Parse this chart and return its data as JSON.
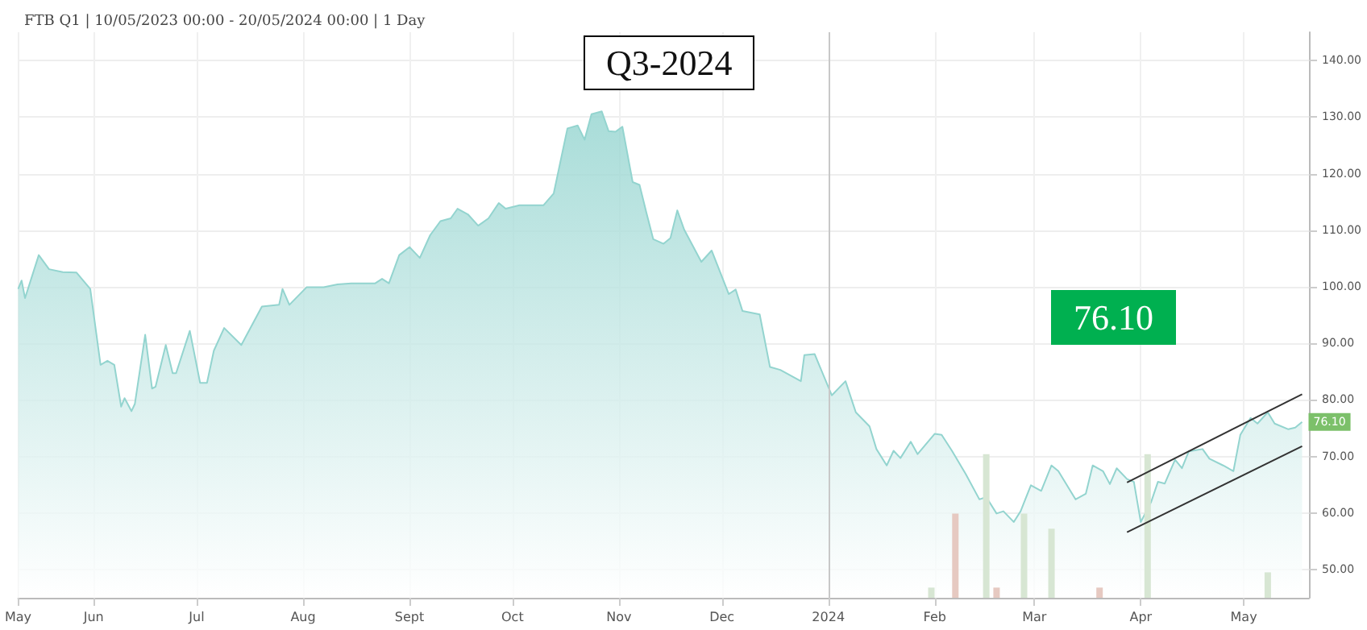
{
  "chart_data": {
    "type": "area",
    "title": "Q3-2024",
    "subtitle": "FTB Q1 | 10/05/2023 00:00 - 20/05/2024 00:00 | 1 Day",
    "annotations": [
      "76.10",
      {
        "text": "76.10",
        "x": "2024-05-18",
        "y": 76.1
      }
    ],
    "xlim": [
      "2023-05-10",
      "2024-05-20"
    ],
    "xticks": [
      {
        "value": "2023-05-10",
        "label": "May"
      },
      {
        "value": "2023-06-01",
        "label": "Jun"
      },
      {
        "value": "2023-07-01",
        "label": "Jul"
      },
      {
        "value": "2023-08-01",
        "label": "Aug"
      },
      {
        "value": "2023-09-01",
        "label": "Sept"
      },
      {
        "value": "2023-10-01",
        "label": "Oct"
      },
      {
        "value": "2023-11-01",
        "label": "Nov"
      },
      {
        "value": "2023-12-01",
        "label": "Dec"
      },
      {
        "value": "2024-01-01",
        "label": "2024"
      },
      {
        "value": "2024-02-01",
        "label": "Feb"
      },
      {
        "value": "2024-03-01",
        "label": "Mar"
      },
      {
        "value": "2024-04-01",
        "label": "Apr"
      },
      {
        "value": "2024-05-01",
        "label": "May"
      }
    ],
    "ylim": [
      45,
      145
    ],
    "yticks": [
      {
        "value": 50,
        "label": "50.00"
      },
      {
        "value": 60,
        "label": "60.00"
      },
      {
        "value": 70,
        "label": "70.00"
      },
      {
        "value": 80,
        "label": "80.00"
      },
      {
        "value": 90,
        "label": "90.00"
      },
      {
        "value": 100,
        "label": "100.00"
      },
      {
        "value": 110,
        "label": "110.00"
      },
      {
        "value": 120,
        "label": "120.00"
      },
      {
        "value": 130,
        "label": "130.00"
      },
      {
        "value": 140,
        "label": "140.00"
      }
    ],
    "grid": true,
    "ref_lines": [
      {
        "axis": "x",
        "value": "2024-01-01",
        "color": "#c8c8c8"
      }
    ],
    "series": [
      {
        "color": "#93d4cf",
        "x": [
          "2023-05-10",
          "2023-05-11",
          "2023-05-12",
          "2023-05-16",
          "2023-05-19",
          "2023-05-23",
          "2023-05-27",
          "2023-05-31",
          "2023-06-03",
          "2023-06-05",
          "2023-06-07",
          "2023-06-09",
          "2023-06-10",
          "2023-06-12",
          "2023-06-13",
          "2023-06-16",
          "2023-06-18",
          "2023-06-19",
          "2023-06-22",
          "2023-06-24",
          "2023-06-25",
          "2023-06-29",
          "2023-07-02",
          "2023-07-04",
          "2023-07-06",
          "2023-07-09",
          "2023-07-14",
          "2023-07-20",
          "2023-07-25",
          "2023-07-26",
          "2023-07-28",
          "2023-08-02",
          "2023-08-07",
          "2023-08-11",
          "2023-08-15",
          "2023-08-22",
          "2023-08-24",
          "2023-08-26",
          "2023-08-29",
          "2023-09-01",
          "2023-09-04",
          "2023-09-07",
          "2023-09-10",
          "2023-09-13",
          "2023-09-15",
          "2023-09-18",
          "2023-09-21",
          "2023-09-24",
          "2023-09-27",
          "2023-09-29",
          "2023-10-03",
          "2023-10-07",
          "2023-10-10",
          "2023-10-13",
          "2023-10-17",
          "2023-10-20",
          "2023-10-22",
          "2023-10-24",
          "2023-10-27",
          "2023-10-29",
          "2023-10-31",
          "2023-11-02",
          "2023-11-05",
          "2023-11-07",
          "2023-11-09",
          "2023-11-11",
          "2023-11-14",
          "2023-11-16",
          "2023-11-18",
          "2023-11-20",
          "2023-11-25",
          "2023-11-28",
          "2023-12-03",
          "2023-12-05",
          "2023-12-07",
          "2023-12-12",
          "2023-12-15",
          "2023-12-18",
          "2023-12-24",
          "2023-12-25",
          "2023-12-28",
          "2024-01-02",
          "2024-01-06",
          "2024-01-09",
          "2024-01-13",
          "2024-01-15",
          "2024-01-18",
          "2024-01-20",
          "2024-01-22",
          "2024-01-25",
          "2024-01-27",
          "2024-02-01",
          "2024-02-03",
          "2024-02-06",
          "2024-02-10",
          "2024-02-14",
          "2024-02-16",
          "2024-02-19",
          "2024-02-21",
          "2024-02-24",
          "2024-02-26",
          "2024-02-29",
          "2024-03-03",
          "2024-03-06",
          "2024-03-08",
          "2024-03-13",
          "2024-03-16",
          "2024-03-18",
          "2024-03-21",
          "2024-03-23",
          "2024-03-25",
          "2024-03-28",
          "2024-03-30",
          "2024-04-01",
          "2024-04-04",
          "2024-04-06",
          "2024-04-08",
          "2024-04-11",
          "2024-04-13",
          "2024-04-15",
          "2024-04-19",
          "2024-04-21",
          "2024-04-25",
          "2024-04-28",
          "2024-04-30",
          "2024-05-03",
          "2024-05-05",
          "2024-05-08",
          "2024-05-10",
          "2024-05-14",
          "2024-05-16",
          "2024-05-18"
        ],
        "values": [
          99.6,
          101.1,
          98.0,
          105.6,
          103.1,
          102.6,
          102.5,
          99.6,
          86.2,
          86.9,
          86.2,
          78.8,
          80.3,
          78.0,
          79.3,
          91.5,
          82.0,
          82.3,
          89.7,
          84.7,
          84.7,
          92.2,
          83.0,
          83.0,
          88.7,
          92.7,
          89.7,
          96.5,
          96.8,
          99.6,
          96.8,
          99.9,
          99.9,
          100.4,
          100.6,
          100.6,
          101.4,
          100.6,
          105.6,
          107.0,
          105.1,
          109.1,
          111.6,
          112.1,
          113.8,
          112.8,
          110.8,
          112.1,
          114.8,
          113.8,
          114.4,
          114.4,
          114.4,
          116.5,
          128.0,
          128.5,
          126.0,
          130.5,
          131.0,
          127.5,
          127.4,
          128.3,
          118.5,
          118.0,
          113.1,
          108.4,
          107.6,
          108.6,
          113.5,
          110.1,
          104.4,
          106.4,
          98.7,
          99.5,
          95.7,
          95.1,
          85.8,
          85.3,
          83.3,
          87.9,
          88.1,
          80.8,
          83.3,
          77.8,
          75.3,
          71.3,
          68.4,
          71.0,
          69.7,
          72.6,
          70.4,
          74.0,
          73.8,
          71.0,
          66.9,
          62.4,
          62.8,
          59.9,
          60.3,
          58.4,
          60.3,
          64.9,
          63.9,
          68.4,
          67.4,
          62.4,
          63.4,
          68.4,
          67.4,
          65.1,
          67.9,
          66.0,
          65.5,
          58.4,
          61.9,
          65.5,
          65.2,
          69.4,
          67.9,
          70.9,
          71.3,
          69.6,
          68.4,
          67.4,
          73.8,
          76.8,
          75.8,
          77.8,
          75.8,
          74.8,
          75.1,
          76.1
        ]
      },
      {
        "type": "line",
        "color": "#333333",
        "x": [
          "2024-03-28",
          "2024-05-18"
        ],
        "values": [
          65.4,
          81.0
        ]
      },
      {
        "type": "line",
        "color": "#333333",
        "x": [
          "2024-03-28",
          "2024-05-18"
        ],
        "values": [
          56.6,
          71.8
        ]
      },
      {
        "type": "bar",
        "x": [
          "2024-01-31",
          "2024-02-07",
          "2024-02-16",
          "2024-02-19",
          "2024-02-27",
          "2024-03-06",
          "2024-03-20",
          "2024-04-03",
          "2024-05-08"
        ],
        "values": [
          46.8,
          59.9,
          70.4,
          46.8,
          59.9,
          57.2,
          46.8,
          70.4,
          49.5
        ],
        "colors": [
          "#d7e6d3",
          "#e6c9c1",
          "#d7e6d3",
          "#e6c9c1",
          "#d7e6d3",
          "#d7e6d3",
          "#e6c9c1",
          "#d7e6d3",
          "#d7e6d3"
        ]
      }
    ]
  }
}
